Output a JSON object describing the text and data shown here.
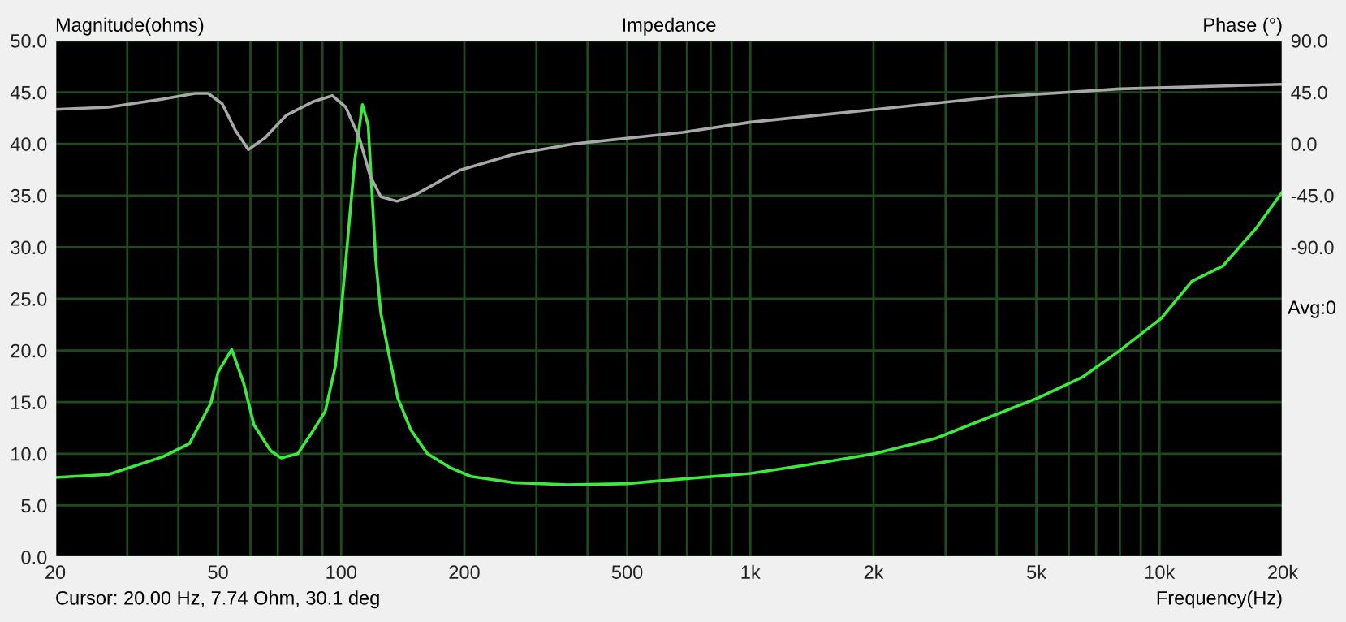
{
  "chart_data": {
    "type": "line",
    "title": "Impedance",
    "ylabel": "Magnitude(ohms)",
    "y2label": "Phase (°)",
    "xlabel": "Frequency(Hz)",
    "annotations": [
      "Cursor: 20.00 Hz, 7.74 Ohm, 30.1 deg",
      "Avg:0"
    ],
    "log": "x",
    "grid": true,
    "legend": false,
    "xlim": [
      20,
      20000
    ],
    "xticks": [
      20,
      {
        "value": 30,
        "label": null
      },
      {
        "value": 40,
        "label": null
      },
      50,
      {
        "value": 60,
        "label": null
      },
      {
        "value": 70,
        "label": null
      },
      {
        "value": 80,
        "label": null
      },
      {
        "value": 90,
        "label": null
      },
      100,
      200,
      {
        "value": 300,
        "label": null
      },
      {
        "value": 400,
        "label": null
      },
      500,
      {
        "value": 600,
        "label": null
      },
      {
        "value": 700,
        "label": null
      },
      {
        "value": 800,
        "label": null
      },
      {
        "value": 900,
        "label": null
      },
      {
        "value": 1000,
        "label": "1k"
      },
      {
        "value": 2000,
        "label": "2k"
      },
      {
        "value": 3000,
        "label": null
      },
      {
        "value": 4000,
        "label": null
      },
      {
        "value": 5000,
        "label": "5k"
      },
      {
        "value": 6000,
        "label": null
      },
      {
        "value": 7000,
        "label": null
      },
      {
        "value": 8000,
        "label": null
      },
      {
        "value": 9000,
        "label": null
      },
      {
        "value": 10000,
        "label": "10k"
      },
      {
        "value": 20000,
        "label": "20k"
      }
    ],
    "ylim": [
      0,
      50
    ],
    "yticks": [
      {
        "value": 0,
        "label": "0.0"
      },
      {
        "value": 5,
        "label": "5.0"
      },
      {
        "value": 10,
        "label": "10.0"
      },
      {
        "value": 15,
        "label": "15.0"
      },
      {
        "value": 20,
        "label": "20.0"
      },
      {
        "value": 25,
        "label": "25.0"
      },
      {
        "value": 30,
        "label": "30.0"
      },
      {
        "value": 35,
        "label": "35.0"
      },
      {
        "value": 40,
        "label": "40.0"
      },
      {
        "value": 45,
        "label": "45.0"
      },
      {
        "value": 50,
        "label": "50.0"
      }
    ],
    "y2lim": [
      -360,
      90
    ],
    "y2ticks": [
      {
        "value": 90,
        "label": "90.0"
      },
      {
        "value": 45,
        "label": "45.0"
      },
      {
        "value": 0,
        "label": "0.0"
      },
      {
        "value": -45,
        "label": "-45.0"
      },
      {
        "value": -90,
        "label": "-90.0"
      }
    ],
    "series": [
      {
        "color": "#a8a8a8",
        "axis": "y2",
        "x": [
          20,
          27,
          36.6,
          43.9,
          47.3,
          51.2,
          55.1,
          59.3,
          65,
          73.5,
          85.6,
          95.2,
          102.6,
          110.8,
          117.7,
          125,
          137,
          152.3,
          194.5,
          264,
          369,
          568,
          683,
          1003,
          2021,
          3982,
          8000,
          20000
        ],
        "values": [
          30,
          32,
          39,
          44,
          44,
          35,
          12,
          -5,
          5,
          25,
          37,
          42,
          32,
          5,
          -28,
          -46,
          -50,
          -44,
          -23,
          -9,
          0,
          7,
          10,
          19,
          30,
          41,
          48,
          52
        ]
      },
      {
        "color": "#3ee83e",
        "x": [
          20,
          27,
          36.6,
          42.6,
          48,
          50,
          54,
          57.7,
          61.2,
          67.2,
          71.3,
          78.3,
          85.6,
          91.4,
          96.8,
          100.4,
          102.9,
          108,
          112.7,
          116.4,
          121.5,
          125,
          131,
          137.5,
          148,
          162.5,
          183.7,
          207.5,
          265,
          357,
          500,
          568,
          1002,
          1419,
          2009,
          2841,
          3982,
          5043,
          6468,
          8000,
          10090,
          12000,
          14300,
          17200,
          20000
        ],
        "values": [
          7.7,
          8,
          9.7,
          11,
          14.9,
          17.9,
          20.1,
          16.9,
          12.8,
          10.3,
          9.6,
          10,
          12.3,
          14.1,
          18.5,
          24.6,
          29.2,
          38.5,
          43.8,
          41.8,
          28.7,
          23.6,
          19.5,
          15.4,
          12.3,
          10,
          8.7,
          7.8,
          7.2,
          7,
          7.1,
          7.3,
          8.1,
          9,
          10,
          11.5,
          13.8,
          15.4,
          17.4,
          20,
          23.1,
          26.7,
          28.2,
          31.8,
          35.4
        ]
      }
    ]
  }
}
